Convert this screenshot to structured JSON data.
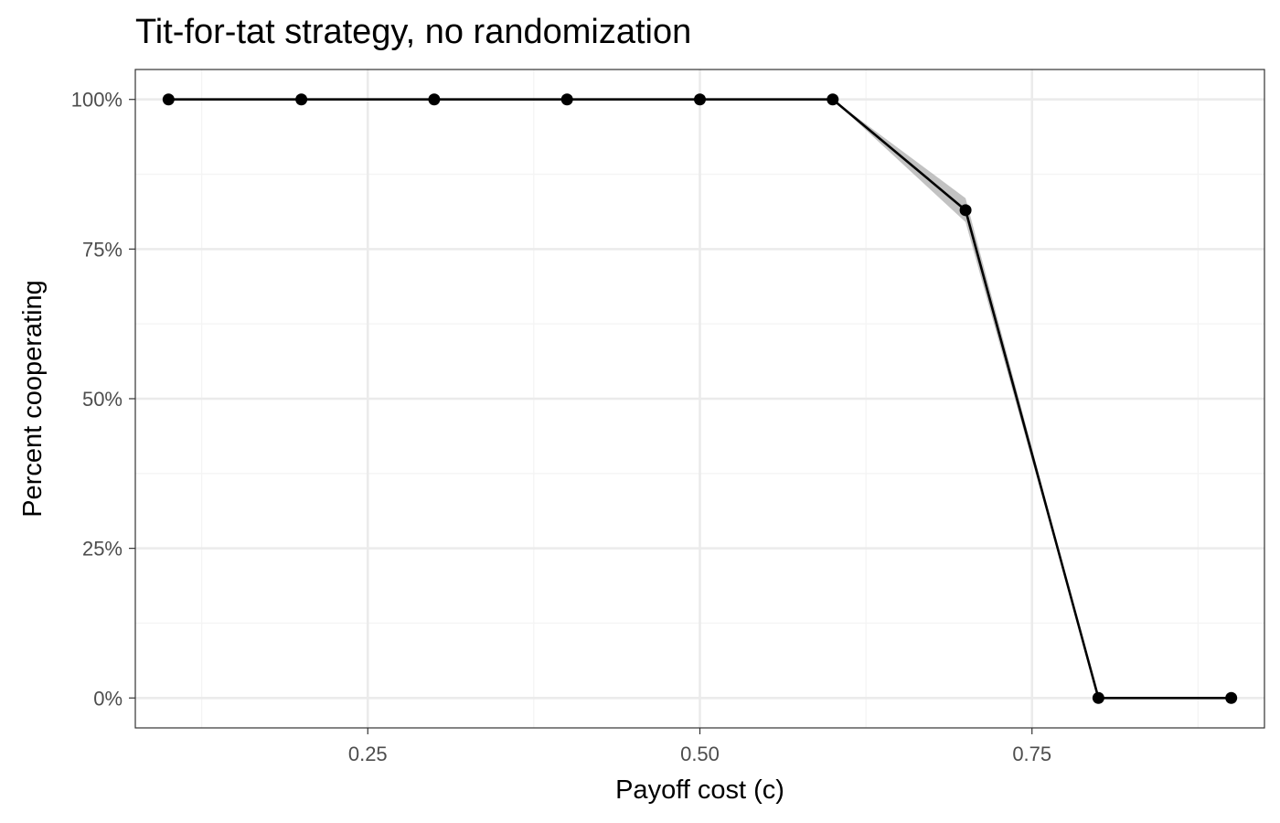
{
  "chart_data": {
    "type": "line",
    "title": "Tit-for-tat strategy, no randomization",
    "xlabel": "Payoff cost (c)",
    "ylabel": "Percent cooperating",
    "xlim": [
      0.075,
      0.925
    ],
    "ylim": [
      -0.05,
      1.05
    ],
    "x_ticks": [
      0.25,
      0.5,
      0.75
    ],
    "x_tick_labels": [
      "0.25",
      "0.50",
      "0.75"
    ],
    "y_ticks": [
      0,
      0.25,
      0.5,
      0.75,
      1.0
    ],
    "y_tick_labels": [
      "0%",
      "25%",
      "50%",
      "75%",
      "100%"
    ],
    "grid": true,
    "series": [
      {
        "x": [
          0.1,
          0.2,
          0.3,
          0.4,
          0.5,
          0.6,
          0.7,
          0.8,
          0.9
        ],
        "values": [
          1.0,
          1.0,
          1.0,
          1.0,
          1.0,
          1.0,
          0.815,
          0.0,
          0.0
        ],
        "ci_lower": [
          1.0,
          1.0,
          1.0,
          1.0,
          1.0,
          1.0,
          0.795,
          0.0,
          0.0
        ],
        "ci_upper": [
          1.0,
          1.0,
          1.0,
          1.0,
          1.0,
          1.0,
          0.835,
          0.0,
          0.0
        ]
      }
    ],
    "colors": {
      "line": "#000000",
      "ribbon": "#999999",
      "grid_major": "#ebebeb",
      "grid_minor": "#f4f4f4",
      "panel_border": "#333333",
      "tick_text": "#4d4d4d"
    }
  }
}
